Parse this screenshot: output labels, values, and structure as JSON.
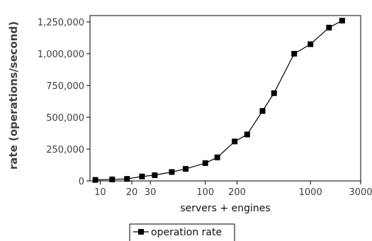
{
  "chart_data": {
    "type": "line",
    "title": "",
    "xlabel": "servers + engines",
    "ylabel": "rate (operations/second)",
    "x_scale": "log",
    "xlim": [
      8,
      3000
    ],
    "ylim": [
      0,
      1300000
    ],
    "x_ticks": [
      10,
      20,
      30,
      100,
      200,
      1000,
      3000
    ],
    "x_tick_labels": [
      "10",
      "20",
      "30",
      "100",
      "200",
      "1000",
      "3000"
    ],
    "y_ticks": [
      0,
      250000,
      500000,
      750000,
      1000000,
      1250000
    ],
    "y_tick_labels": [
      "0",
      "250,000",
      "500,000",
      "750,000",
      "1,000,000",
      "1,250,000"
    ],
    "grid": false,
    "legend_position": "bottom-center",
    "series": [
      {
        "name": "operation rate",
        "marker": "square",
        "color": "#000000",
        "x": [
          9,
          13,
          18,
          25,
          33,
          48,
          65,
          100,
          130,
          190,
          250,
          350,
          450,
          700,
          1000,
          1500,
          2000
        ],
        "y": [
          8000,
          12000,
          16000,
          35000,
          45000,
          70000,
          95000,
          140000,
          185000,
          310000,
          365000,
          550000,
          690000,
          1000000,
          1075000,
          1205000,
          1260000
        ]
      }
    ]
  }
}
